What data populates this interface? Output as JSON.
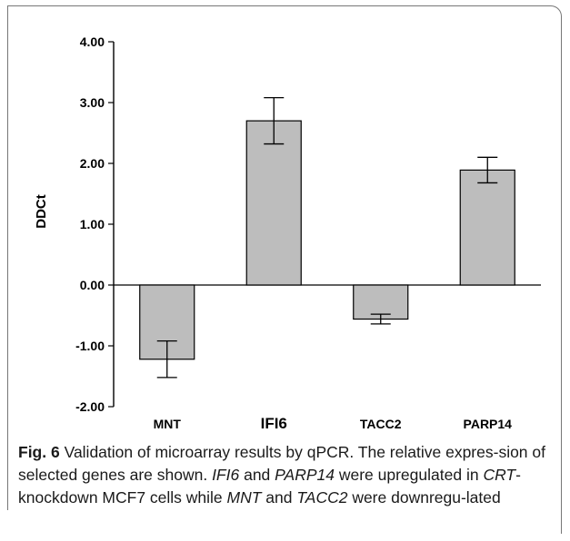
{
  "chart_data": {
    "type": "bar",
    "ylabel": "DDCt",
    "categories": [
      "MNT",
      "IFI6",
      "TACC2",
      "PARP14"
    ],
    "values": [
      -1.22,
      2.7,
      -0.56,
      1.89
    ],
    "errors": [
      0.3,
      0.38,
      0.08,
      0.21
    ],
    "ylim": [
      -2.0,
      4.0
    ],
    "yticks": [
      "4.00",
      "3.00",
      "2.00",
      "1.00",
      "0.00",
      "-1.00",
      "-2.00"
    ],
    "bar_color": "#bdbdbd",
    "grid": false
  },
  "caption": {
    "fig_label": "Fig. 6",
    "parts": [
      {
        "text": "  Validation of microarray results by qPCR. The relative expres-sion of selected genes are shown. ",
        "italic": false
      },
      {
        "text": "IFI6",
        "italic": true
      },
      {
        "text": " and ",
        "italic": false
      },
      {
        "text": "PARP14",
        "italic": true
      },
      {
        "text": " were upregulated in ",
        "italic": false
      },
      {
        "text": "CRT",
        "italic": true
      },
      {
        "text": "-knockdown MCF7 cells while ",
        "italic": false
      },
      {
        "text": "MNT",
        "italic": true
      },
      {
        "text": " and ",
        "italic": false
      },
      {
        "text": "TACC2",
        "italic": true
      },
      {
        "text": " were downregu-lated",
        "italic": false
      }
    ]
  }
}
